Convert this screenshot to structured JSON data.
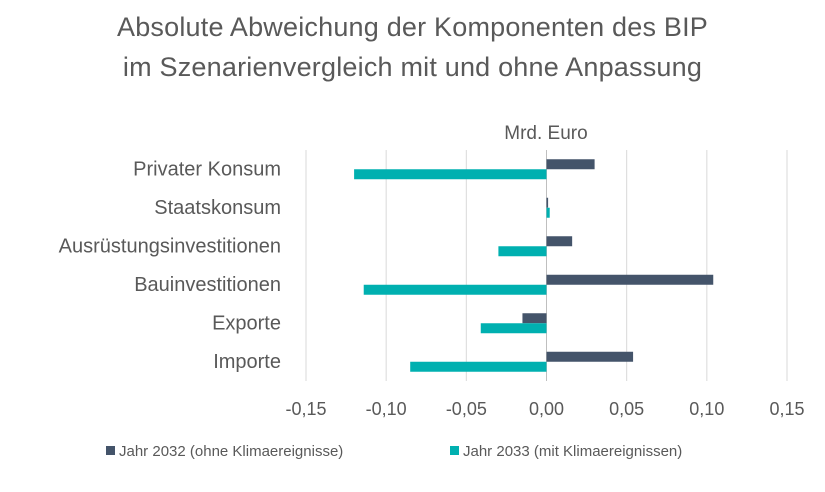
{
  "chart_data": {
    "type": "bar",
    "orientation": "horizontal",
    "title": [
      "Absolute Abweichung der Komponenten des BIP",
      "im Szenarienvergleich mit und ohne Anpassung"
    ],
    "xlabel": "Mrd. Euro",
    "ylabel": "",
    "categories": [
      "Privater Konsum",
      "Staatskonsum",
      "Ausrüstungsinvestitionen",
      "Bauinvestitionen",
      "Exporte",
      "Importe"
    ],
    "series": [
      {
        "name": "Jahr 2032 (ohne Klimaereignisse)",
        "color": "#44546A",
        "values": [
          0.03,
          0.001,
          0.016,
          0.104,
          -0.015,
          0.054
        ]
      },
      {
        "name": "Jahr 2033 (mit Klimaereignissen)",
        "color": "#00B0B0",
        "values": [
          -0.12,
          0.002,
          -0.03,
          -0.114,
          -0.041,
          -0.085
        ]
      }
    ],
    "xlim": [
      -0.15,
      0.15
    ],
    "xticks": [
      -0.15,
      -0.1,
      -0.05,
      0.0,
      0.05,
      0.1,
      0.15
    ],
    "xtick_labels": [
      "-0,15",
      "-0,10",
      "-0,05",
      "0,00",
      "0,05",
      "0,10",
      "0,15"
    ],
    "grid": true,
    "legend": "bottom"
  }
}
